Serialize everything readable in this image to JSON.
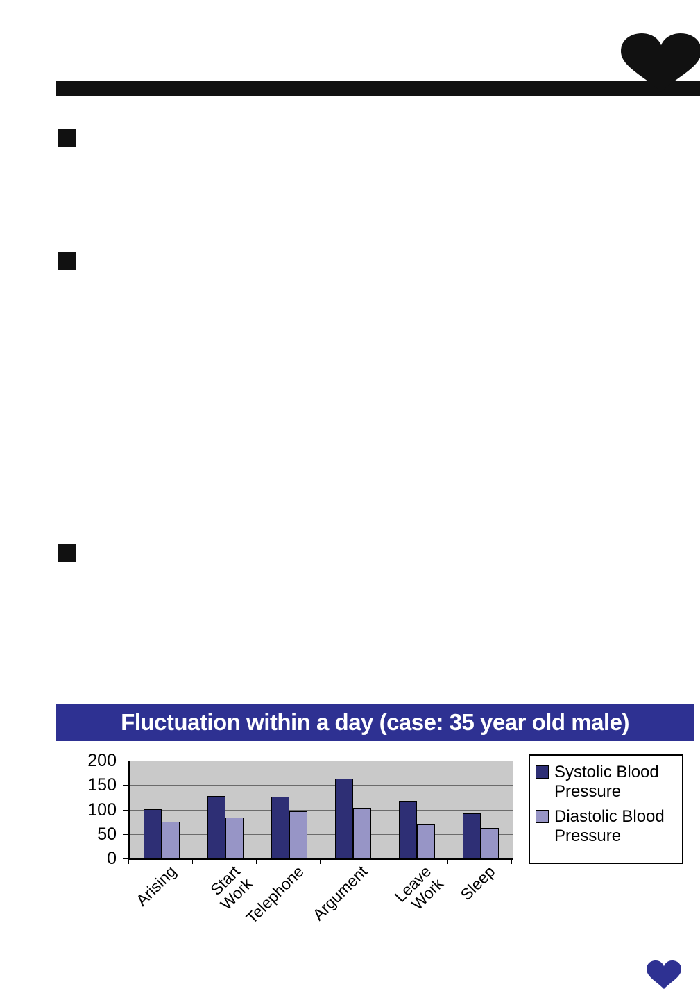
{
  "banner": {
    "title": "Fluctuation within a day (case: 35 year old male)",
    "bg_color": "#2e3192",
    "text_color": "#ffffff"
  },
  "icons": {
    "top_right": "heart-icon",
    "bottom_right": "heart-icon",
    "top_heart_color": "#111111",
    "bottom_heart_color": "#2e3192",
    "bullet_square_color": "#111111",
    "bullet_square_count": 3
  },
  "chart_data": {
    "type": "bar",
    "title": "Fluctuation within a day (case: 35 year old male)",
    "categories": [
      "Arising",
      "Start Work",
      "Telephone",
      "Argument",
      "Leave Work",
      "Sleep"
    ],
    "series": [
      {
        "name": "Systolic Blood Pressure",
        "values": [
          100,
          128,
          126,
          163,
          118,
          92
        ],
        "color": "#2e2f75"
      },
      {
        "name": "Diastolic Blood Pressure",
        "values": [
          75,
          83,
          97,
          102,
          70,
          62
        ],
        "color": "#9795c6"
      }
    ],
    "xlabel": "",
    "ylabel": "",
    "ylim": [
      0,
      200
    ],
    "yticks": [
      0,
      50,
      100,
      150,
      200
    ],
    "grid": true,
    "legend_position": "right",
    "plot_bg": "#c9c9c9"
  }
}
